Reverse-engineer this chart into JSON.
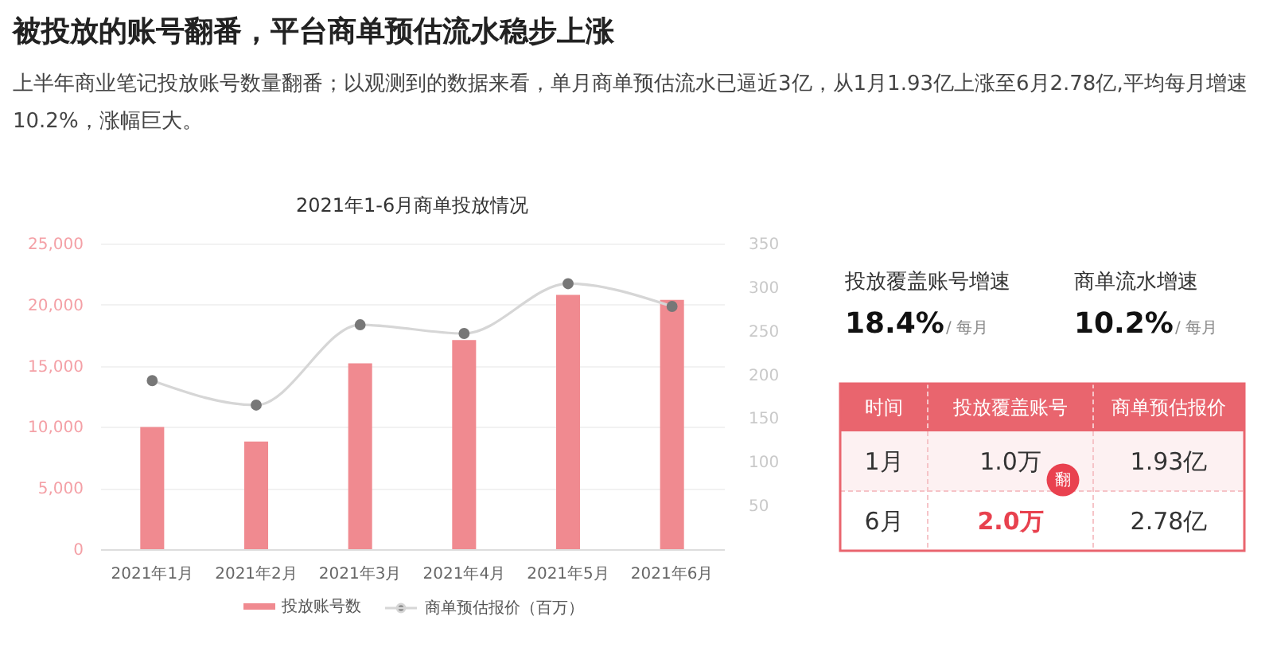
{
  "chart_data": [
    {
      "type": "other",
      "title": "被投放的账号翻番，平台商单预估流水稳步上涨",
      "subtitle": "上半年商业笔记投放账号数量翻番；以观测到的数据来看，单月商单预估流水已逼近3亿，从1月1.93亿上涨至6月2.78亿,平均每月增速10.2%，涨幅巨大。"
    },
    {
      "type": "bar",
      "title": "2021年1-6月商单投放情况",
      "categories": [
        "2021年1月",
        "2021年2月",
        "2021年3月",
        "2021年4月",
        "2021年5月",
        "2021年6月"
      ],
      "series": [
        {
          "name": "投放账号数",
          "type": "bar",
          "color": "#f08a90",
          "values": [
            10000,
            8800,
            15200,
            17100,
            20800,
            20400
          ]
        },
        {
          "name": "商单预估报价（百万）",
          "type": "line",
          "axis": "y2",
          "color": "#777777",
          "values": [
            193,
            165,
            257,
            247,
            304,
            278
          ]
        }
      ],
      "ylim": [
        0,
        25000
      ],
      "yticks": [
        0,
        {
          "value": 5000,
          "label": "5,000"
        },
        {
          "value": 10000,
          "label": "10,000"
        },
        {
          "value": 15000,
          "label": "15,000"
        },
        {
          "value": 20000,
          "label": "20,000"
        },
        {
          "value": 25000,
          "label": "25,000"
        }
      ],
      "y2lim": [
        0,
        350
      ],
      "y2ticks": [
        50,
        100,
        150,
        200,
        250,
        300,
        350
      ],
      "grid": "y",
      "legend": "bottom",
      "marker": "circle"
    },
    {
      "type": "other",
      "annotations": [
        "投放覆盖账号增速",
        "18.4%",
        "/ 每月",
        "商单流水增速",
        "10.2%",
        "/ 每月",
        "时间",
        "投放覆盖账号",
        "商单预估报价",
        "1月",
        "1.0万",
        "1.93亿",
        "6月",
        "2.0万",
        "2.78亿",
        "翻"
      ]
    }
  ]
}
